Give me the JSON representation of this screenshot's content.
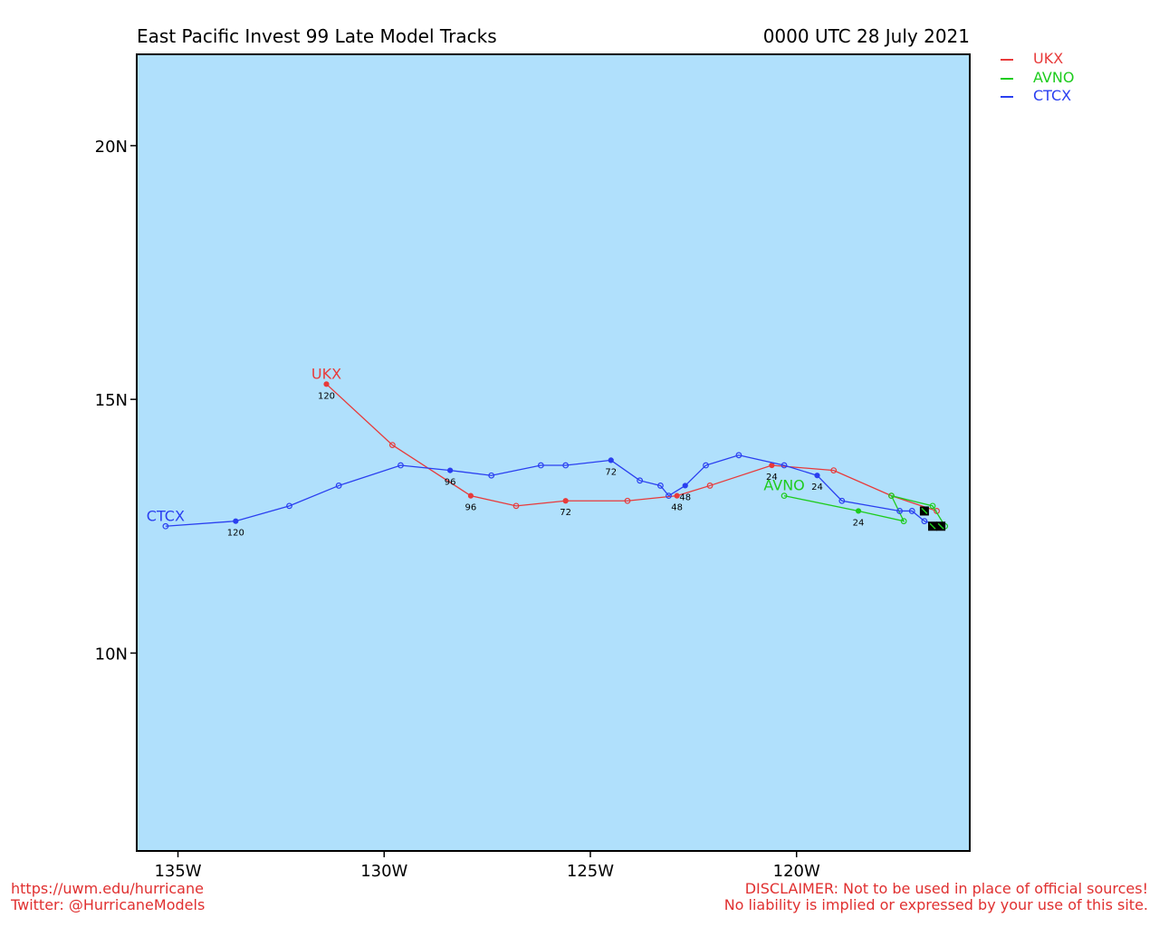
{
  "title": "East Pacific Invest 99 Late Model Tracks",
  "date": "0000 UTC 28 July 2021",
  "footer_left": [
    "https://uwm.edu/hurricane",
    "Twitter: @HurricaneModels"
  ],
  "footer_right": [
    "DISCLAIMER: Not to be used in place of official sources!",
    "No liability is implied or expressed by your use of this site."
  ],
  "map": {
    "ocean_color": "#b0e0fc",
    "lon_range": [
      -136.0,
      -115.8
    ],
    "lat_range": [
      6.1,
      21.8
    ],
    "lon_ticks": [
      {
        "value": -135,
        "label": "135W"
      },
      {
        "value": -130,
        "label": "130W"
      },
      {
        "value": -125,
        "label": "125W"
      },
      {
        "value": -120,
        "label": "120W"
      }
    ],
    "lat_ticks": [
      {
        "value": 20,
        "label": "20N"
      },
      {
        "value": 15,
        "label": "15N"
      },
      {
        "value": 10,
        "label": "10N"
      }
    ]
  },
  "chart_data": {
    "type": "scatter",
    "series": [
      {
        "name": "UKX",
        "color": "#e83a3a",
        "points": [
          [
            -116.6,
            12.8
          ],
          [
            -117.7,
            13.1
          ],
          [
            -119.1,
            13.6
          ],
          [
            -120.6,
            13.7
          ],
          [
            -122.1,
            13.3
          ],
          [
            -122.9,
            13.1
          ],
          [
            -124.1,
            13.0
          ],
          [
            -125.6,
            13.0
          ],
          [
            -126.8,
            12.9
          ],
          [
            -127.9,
            13.1
          ],
          [
            -129.8,
            14.1
          ],
          [
            -131.4,
            15.3
          ]
        ],
        "time_labels": [
          {
            "index": 3,
            "text": "24"
          },
          {
            "index": 5,
            "text": "48"
          },
          {
            "index": 7,
            "text": "72"
          },
          {
            "index": 9,
            "text": "96"
          },
          {
            "index": 11,
            "text": "120"
          }
        ],
        "end_label": "UKX"
      },
      {
        "name": "AVNO",
        "color": "#1ecc1e",
        "points": [
          [
            -116.4,
            12.5
          ],
          [
            -116.7,
            12.9
          ],
          [
            -117.7,
            13.1
          ],
          [
            -117.4,
            12.6
          ],
          [
            -118.5,
            12.8
          ],
          [
            -120.3,
            13.1
          ]
        ],
        "time_labels": [
          {
            "index": 4,
            "text": "24"
          }
        ],
        "end_label": "AVNO"
      },
      {
        "name": "CTCX",
        "color": "#2a3ff0",
        "points": [
          [
            -116.5,
            12.5
          ],
          [
            -116.9,
            12.6
          ],
          [
            -117.2,
            12.8
          ],
          [
            -117.5,
            12.8
          ],
          [
            -118.9,
            13.0
          ],
          [
            -119.5,
            13.5
          ],
          [
            -120.3,
            13.7
          ],
          [
            -121.4,
            13.9
          ],
          [
            -122.2,
            13.7
          ],
          [
            -122.7,
            13.3
          ],
          [
            -123.1,
            13.1
          ],
          [
            -123.3,
            13.3
          ],
          [
            -123.8,
            13.4
          ],
          [
            -124.5,
            13.8
          ],
          [
            -125.6,
            13.7
          ],
          [
            -126.2,
            13.7
          ],
          [
            -127.4,
            13.5
          ],
          [
            -128.4,
            13.6
          ],
          [
            -129.6,
            13.7
          ],
          [
            -131.1,
            13.3
          ],
          [
            -132.3,
            12.9
          ],
          [
            -133.6,
            12.6
          ],
          [
            -135.3,
            12.5
          ]
        ],
        "time_labels": [
          {
            "index": 5,
            "text": "24"
          },
          {
            "index": 9,
            "text": "48"
          },
          {
            "index": 13,
            "text": "72"
          },
          {
            "index": 17,
            "text": "96"
          },
          {
            "index": 21,
            "text": "120"
          }
        ],
        "end_label": "CTCX"
      }
    ],
    "storm_markers": [
      [
        -116.9,
        12.8
      ],
      [
        -116.7,
        12.5
      ],
      [
        -116.5,
        12.5
      ]
    ]
  }
}
